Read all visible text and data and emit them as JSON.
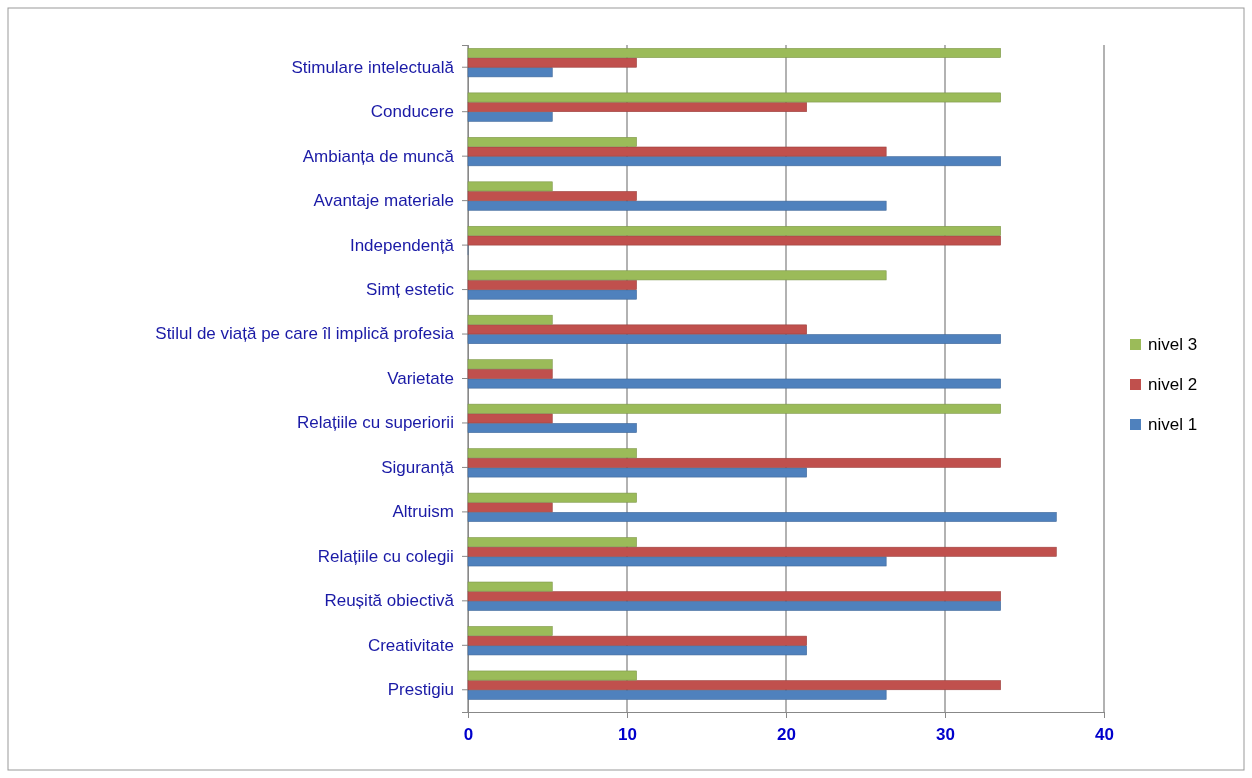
{
  "chart_data": {
    "type": "bar",
    "orientation": "horizontal",
    "categories": [
      "Stimulare intelectuală",
      "Conducere",
      "Ambianța de muncă",
      "Avantaje materiale",
      "Independență",
      "Simț estetic",
      "Stilul de viață pe care îl implică profesia",
      "Varietate",
      "Relațiile cu superiorii",
      "Siguranță",
      "Altruism",
      "Relațiile cu colegii",
      "Reușită obiectivă",
      "Creativitate",
      "Prestigiu"
    ],
    "series": [
      {
        "name": "nivel 1",
        "color": "#4f81bd",
        "values": [
          5.3,
          5.3,
          33.5,
          26.3,
          0,
          10.6,
          33.5,
          33.5,
          10.6,
          21.3,
          37,
          26.3,
          33.5,
          21.3,
          26.3
        ]
      },
      {
        "name": "nivel 2",
        "color": "#c0504d",
        "values": [
          10.6,
          21.3,
          26.3,
          10.6,
          33.5,
          10.6,
          21.3,
          5.3,
          5.3,
          33.5,
          5.3,
          37,
          33.5,
          21.3,
          33.5
        ]
      },
      {
        "name": "nivel 3",
        "color": "#9bbb59",
        "values": [
          33.5,
          33.5,
          10.6,
          5.3,
          33.5,
          26.3,
          5.3,
          5.3,
          33.5,
          10.6,
          10.6,
          10.6,
          5.3,
          5.3,
          10.6
        ]
      }
    ],
    "xlim": [
      0,
      40
    ],
    "xticks": [
      0,
      10,
      20,
      30,
      40
    ],
    "grid": "x",
    "legend": "right"
  }
}
